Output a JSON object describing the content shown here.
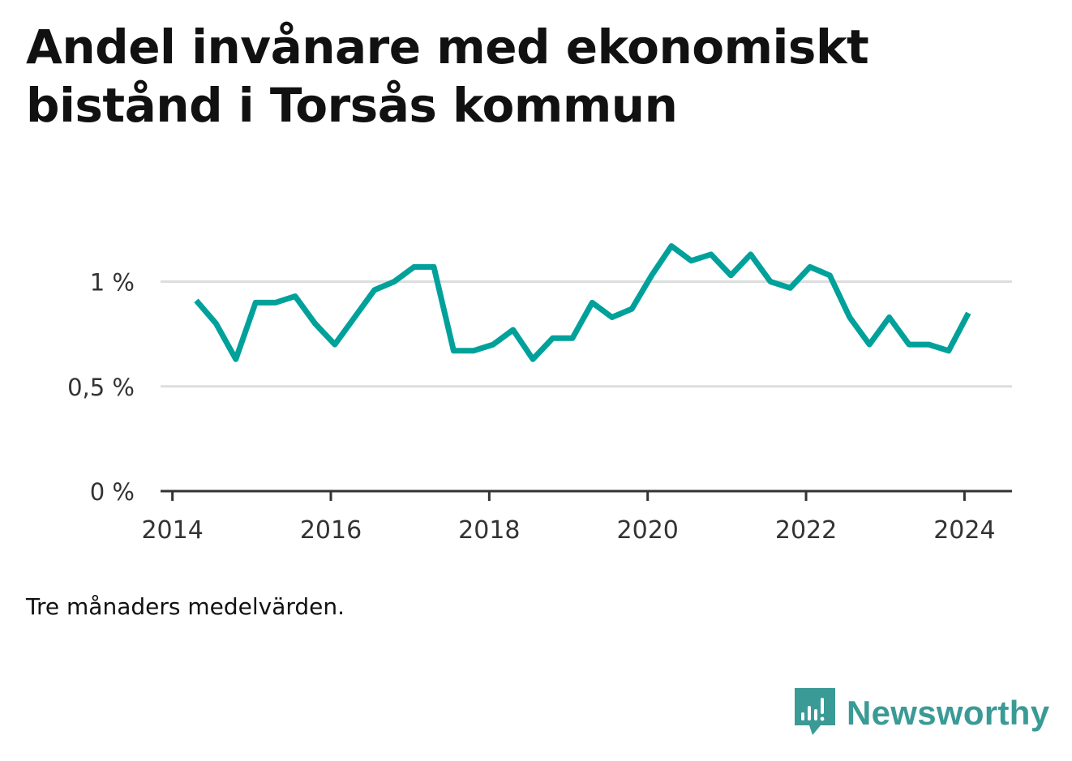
{
  "title": "Andel invånare med ekonomiskt bistånd i Torsås kommun",
  "note": "Tre månaders medelvärden.",
  "brand": {
    "name": "Newsworthy",
    "color": "#3a9a96",
    "icon": "newsworthy-logo-icon"
  },
  "colors": {
    "line": "#00a19a",
    "grid": "#dddddd",
    "axis": "#333333"
  },
  "chart_data": {
    "type": "line",
    "title": "Andel invånare med ekonomiskt bistånd i Torsås kommun",
    "xlabel": "",
    "ylabel": "",
    "xlim": [
      2013.85,
      2024.6
    ],
    "ylim": [
      0,
      1.3
    ],
    "grid": true,
    "y_ticks": [
      {
        "value": 0,
        "label": "0 %"
      },
      {
        "value": 0.5,
        "label": "0,5 %"
      },
      {
        "value": 1,
        "label": "1 %"
      }
    ],
    "x_ticks": [
      {
        "value": 2014,
        "label": "2014"
      },
      {
        "value": 2016,
        "label": "2016"
      },
      {
        "value": 2018,
        "label": "2018"
      },
      {
        "value": 2020,
        "label": "2020"
      },
      {
        "value": 2022,
        "label": "2022"
      },
      {
        "value": 2024,
        "label": "2024"
      }
    ],
    "series": [
      {
        "x": [
          2014.3,
          2014.55,
          2014.8,
          2015.05,
          2015.3,
          2015.55,
          2015.8,
          2016.05,
          2016.3,
          2016.55,
          2016.8,
          2017.05,
          2017.3,
          2017.55,
          2017.8,
          2018.05,
          2018.3,
          2018.55,
          2018.8,
          2019.05,
          2019.3,
          2019.55,
          2019.8,
          2020.05,
          2020.3,
          2020.55,
          2020.8,
          2021.05,
          2021.3,
          2021.55,
          2021.8,
          2022.05,
          2022.3,
          2022.55,
          2022.8,
          2023.05,
          2023.3,
          2023.55,
          2023.8,
          2024.05
        ],
        "values": [
          0.91,
          0.8,
          0.63,
          0.9,
          0.9,
          0.93,
          0.8,
          0.7,
          0.83,
          0.96,
          1.0,
          1.07,
          1.07,
          0.67,
          0.67,
          0.7,
          0.77,
          0.63,
          0.73,
          0.73,
          0.9,
          0.83,
          0.87,
          1.03,
          1.17,
          1.1,
          1.13,
          1.03,
          1.13,
          1.0,
          0.97,
          1.07,
          1.03,
          0.83,
          0.7,
          0.83,
          0.7,
          0.7,
          0.67,
          0.85
        ]
      }
    ]
  }
}
